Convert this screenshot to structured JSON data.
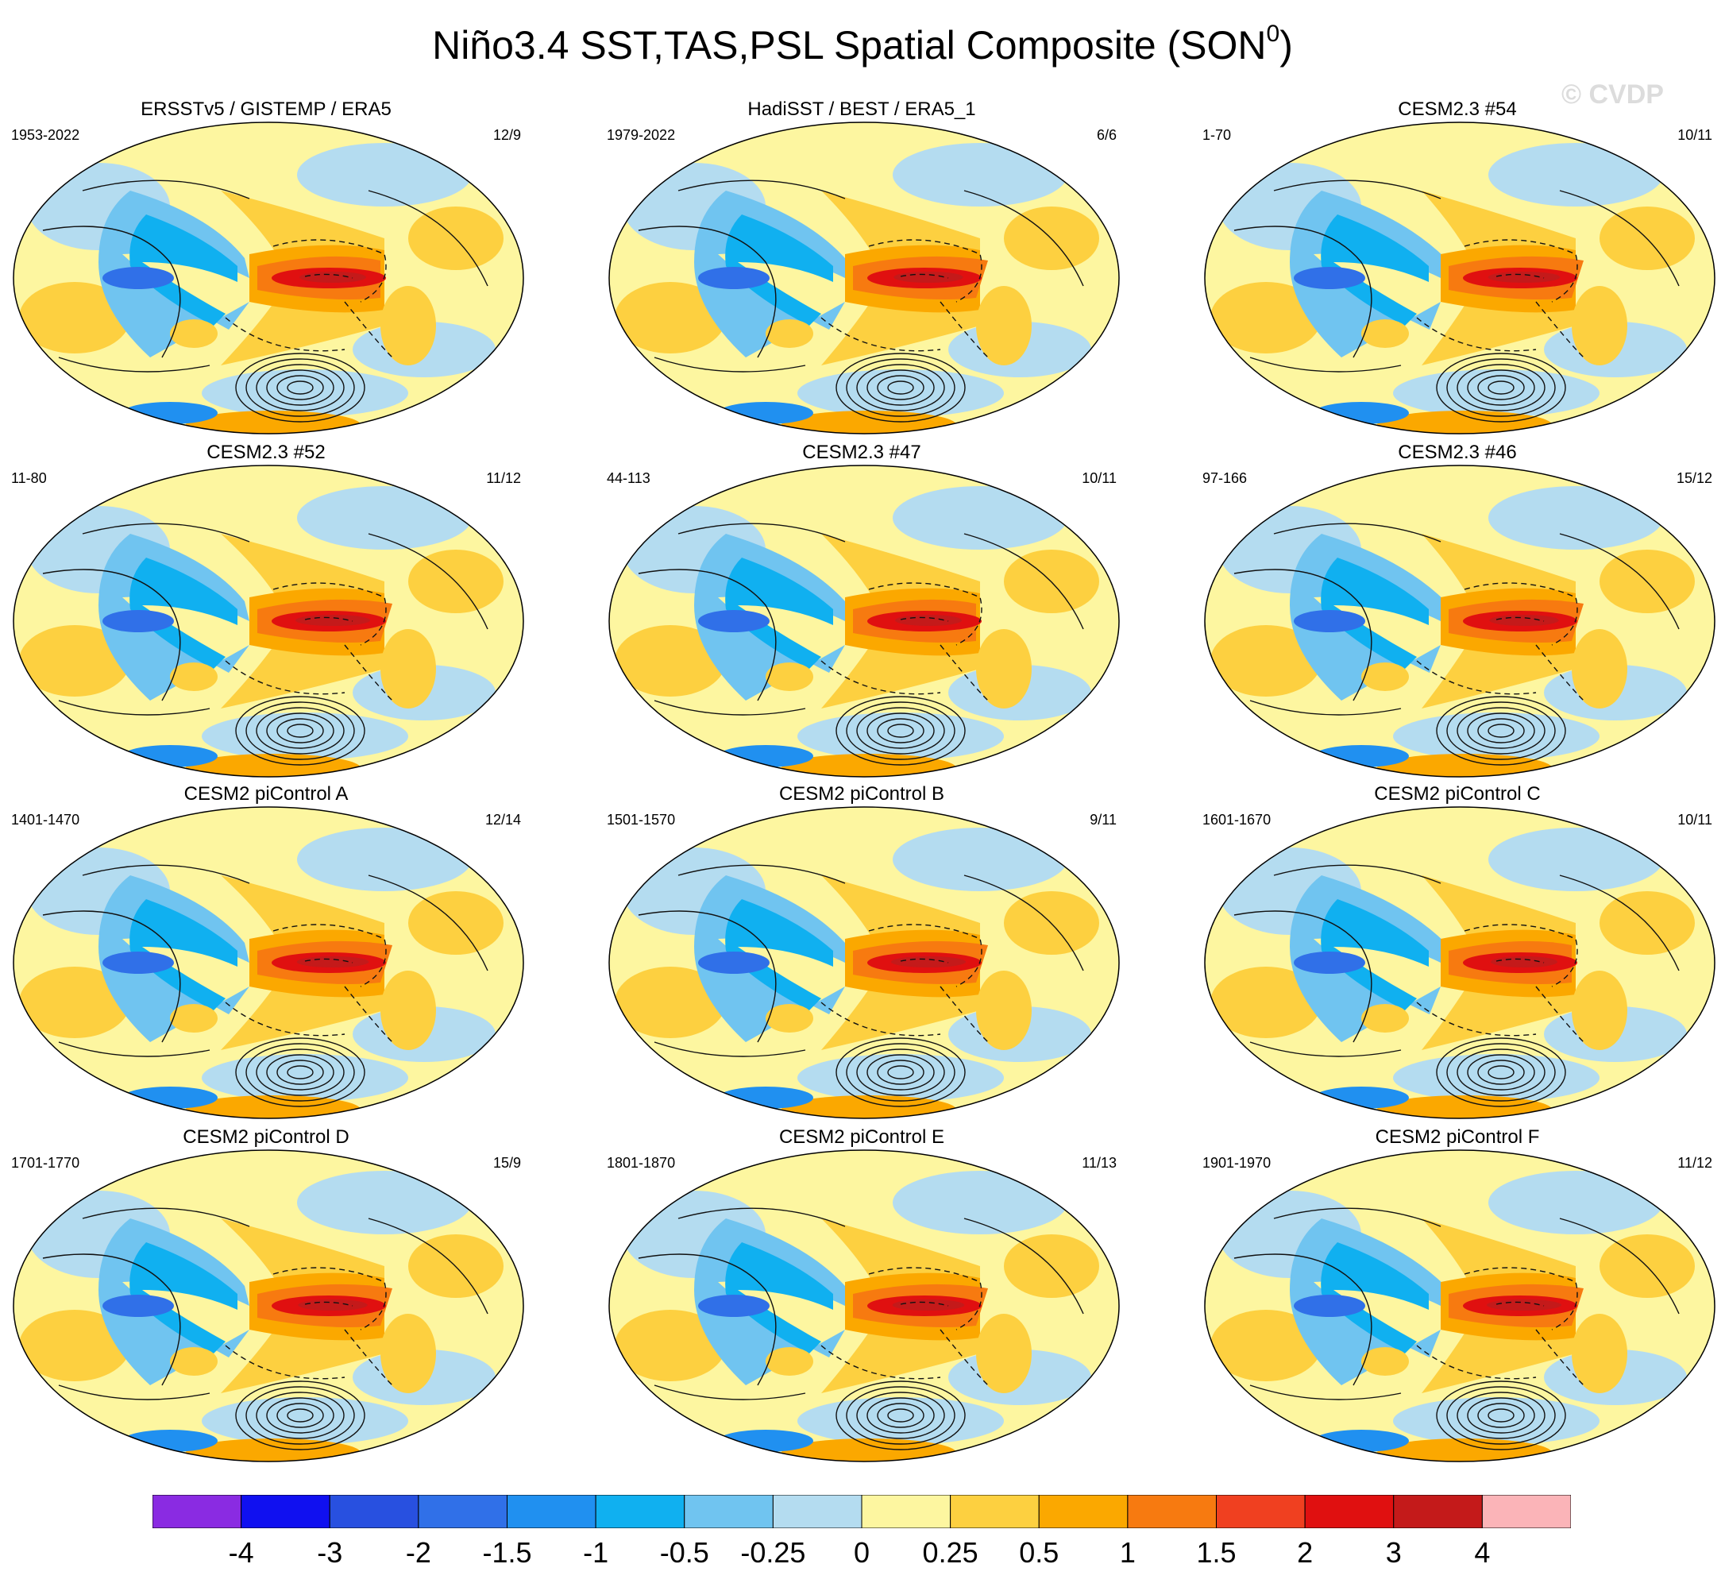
{
  "figure": {
    "title_main": "Niño3.4 SST,TAS,PSL Spatial Composite (SON",
    "title_sup": "0",
    "title_close": ")",
    "watermark": "© CVDP"
  },
  "chart_data": {
    "type": "heatmap",
    "title": "Niño3.4 SST,TAS,PSL Spatial Composite (SON0)",
    "variables": [
      "SST",
      "TAS",
      "PSL"
    ],
    "projection": "robinson-style global map",
    "panels": [
      {
        "title": "ERSSTv5 / GISTEMP / ERA5",
        "period": "1953-2022",
        "count": "12/9"
      },
      {
        "title": "HadiSST / BEST / ERA5_1",
        "period": "1979-2022",
        "count": "6/6"
      },
      {
        "title": "CESM2.3 #54",
        "period": "1-70",
        "count": "10/11"
      },
      {
        "title": "CESM2.3 #52",
        "period": "11-80",
        "count": "11/12"
      },
      {
        "title": "CESM2.3 #47",
        "period": "44-113",
        "count": "10/11"
      },
      {
        "title": "CESM2.3 #46",
        "period": "97-166",
        "count": "15/12"
      },
      {
        "title": "CESM2 piControl A",
        "period": "1401-1470",
        "count": "12/14"
      },
      {
        "title": "CESM2 piControl B",
        "period": "1501-1570",
        "count": "9/11"
      },
      {
        "title": "CESM2 piControl C",
        "period": "1601-1670",
        "count": "10/11"
      },
      {
        "title": "CESM2 piControl D",
        "period": "1701-1770",
        "count": "15/9"
      },
      {
        "title": "CESM2 piControl E",
        "period": "1801-1870",
        "count": "11/13"
      },
      {
        "title": "CESM2 piControl F",
        "period": "1901-1970",
        "count": "11/12"
      }
    ],
    "colorbar": {
      "levels": [
        "-4",
        "-3",
        "-2",
        "-1.5",
        "-1",
        "-0.5",
        "-0.25",
        "0",
        "0.25",
        "0.5",
        "1",
        "1.5",
        "2",
        "3",
        "4"
      ],
      "colors": [
        "#8a2be2",
        "#1010f0",
        "#2850e0",
        "#3070e8",
        "#2090f0",
        "#10b0f0",
        "#70c4f0",
        "#b4dcf0",
        "#fdf6a0",
        "#fdd040",
        "#fba800",
        "#f77a10",
        "#f04020",
        "#e01010",
        "#c41a1a",
        "#fbb4b8"
      ]
    }
  }
}
